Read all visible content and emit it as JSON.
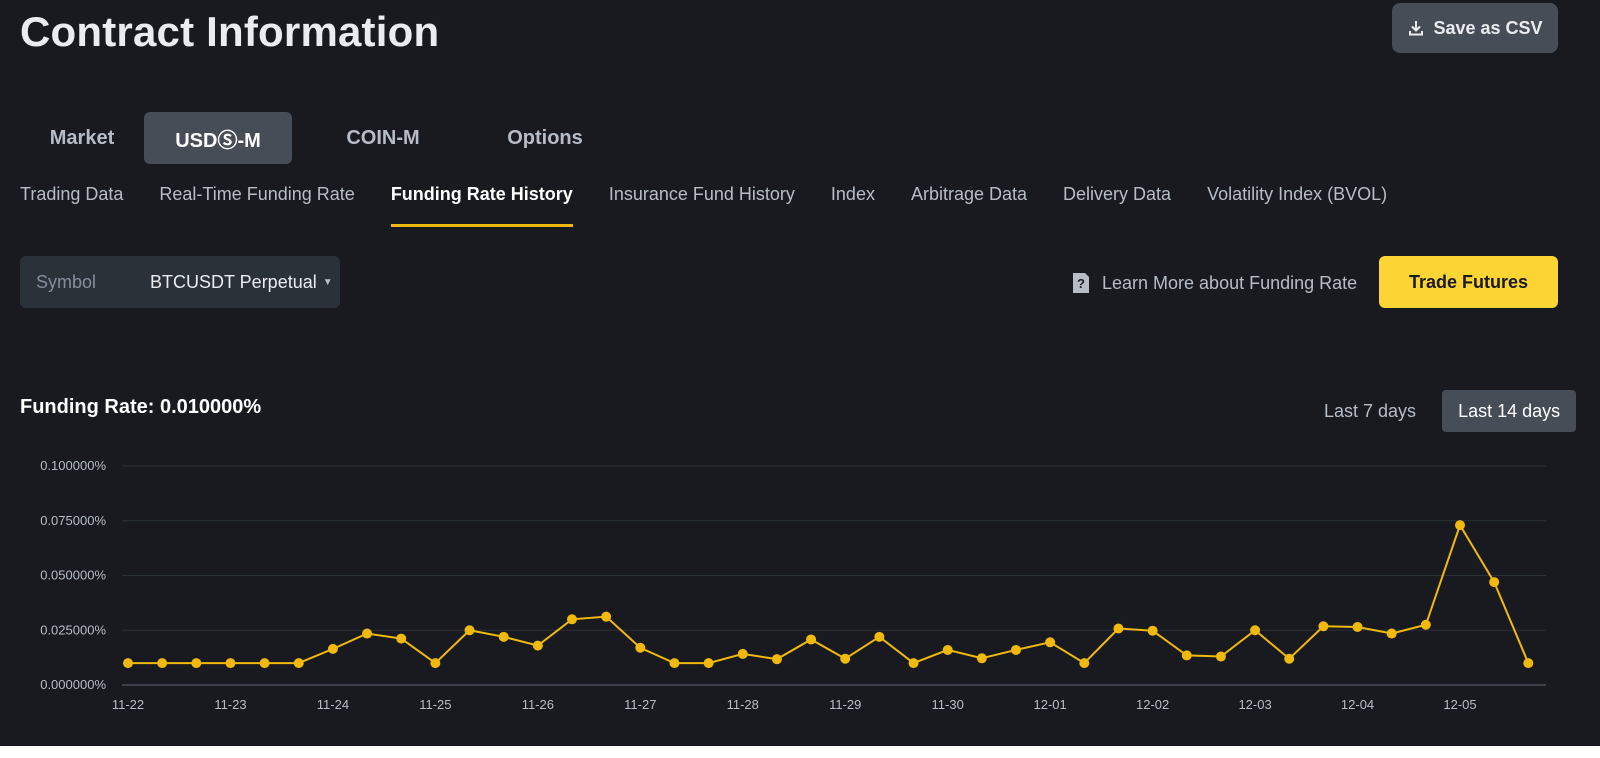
{
  "header": {
    "title": "Contract Information",
    "csv_label": "Save as CSV"
  },
  "market_tabs": [
    {
      "label": "Market"
    },
    {
      "label": "USDⓈ-M",
      "active": true
    },
    {
      "label": "COIN-M"
    },
    {
      "label": "Options"
    }
  ],
  "sub_tabs": [
    {
      "label": "Trading Data"
    },
    {
      "label": "Real-Time Funding Rate"
    },
    {
      "label": "Funding Rate History",
      "active": true
    },
    {
      "label": "Insurance Fund History"
    },
    {
      "label": "Index"
    },
    {
      "label": "Arbitrage Data"
    },
    {
      "label": "Delivery Data"
    },
    {
      "label": "Volatility Index (BVOL)"
    }
  ],
  "symbol": {
    "label": "Symbol",
    "value": "BTCUSDT Perpetual"
  },
  "learn_more": "Learn More about Funding Rate",
  "trade_button": "Trade Futures",
  "funding_rate_text": "Funding Rate: 0.010000%",
  "range_buttons": [
    {
      "label": "Last 7 days"
    },
    {
      "label": "Last 14 days",
      "active": true
    }
  ],
  "colors": {
    "accent": "#f0b90b",
    "line": "#f0b90b",
    "background": "#181a20"
  },
  "icons": {
    "download": "download-icon",
    "help": "help-doc-icon",
    "caret": "caret-down-icon"
  },
  "chart_data": {
    "type": "line",
    "title": "",
    "xlabel": "",
    "ylabel": "",
    "ylim": [
      0,
      0.1
    ],
    "yticks": [
      "0.000000%",
      "0.025000%",
      "0.050000%",
      "0.075000%",
      "0.100000%"
    ],
    "xticks": [
      "11-22",
      "11-23",
      "11-24",
      "11-25",
      "11-26",
      "11-27",
      "11-28",
      "11-29",
      "11-30",
      "12-01",
      "12-02",
      "12-03",
      "12-04",
      "12-05"
    ],
    "grid": true,
    "series": [
      {
        "values": [
          0.01,
          0.01,
          0.01,
          0.01,
          0.01,
          0.01,
          0.0165,
          0.0235,
          0.0212,
          0.01,
          0.025,
          0.022,
          0.018,
          0.03,
          0.0312,
          0.017,
          0.01,
          0.01,
          0.0142,
          0.0118,
          0.0208,
          0.012,
          0.022,
          0.01,
          0.016,
          0.0122,
          0.016,
          0.0195,
          0.01,
          0.0258,
          0.0248,
          0.0135,
          0.013,
          0.025,
          0.012,
          0.0268,
          0.0265,
          0.0235,
          0.0275,
          0.073,
          0.047,
          0.01
        ]
      }
    ]
  }
}
